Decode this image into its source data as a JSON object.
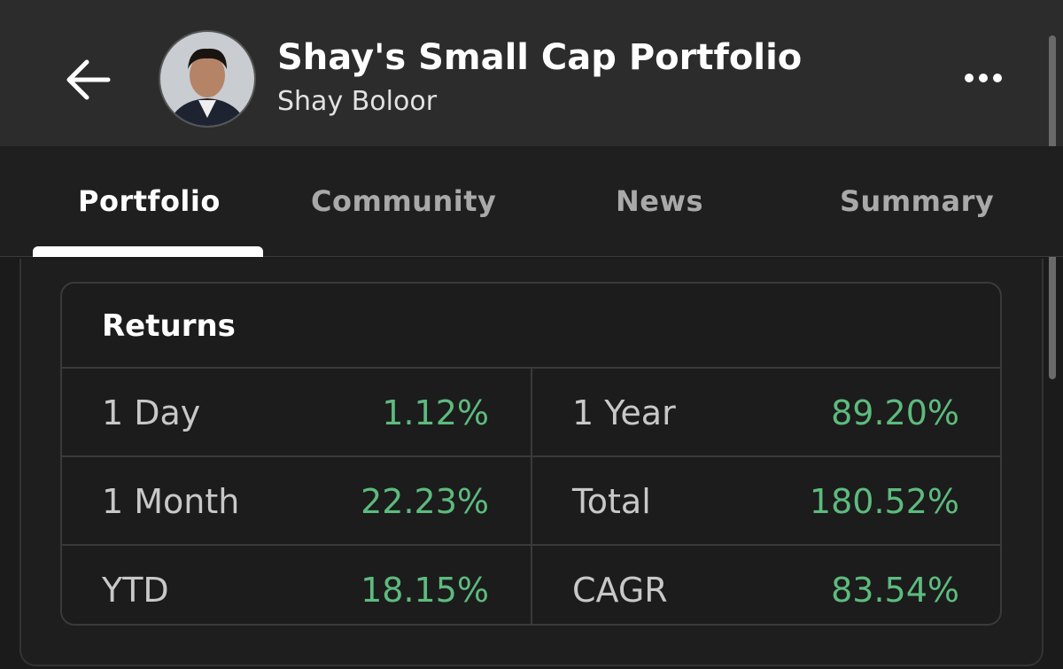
{
  "header": {
    "title": "Shay's Small Cap Portfolio",
    "subtitle": "Shay Boloor"
  },
  "tabs": [
    "Portfolio",
    "Community",
    "News",
    "Summary"
  ],
  "returns": {
    "title": "Returns",
    "rows": [
      [
        "1 Day",
        "1.12%",
        "1 Year",
        "89.20%"
      ],
      [
        "1 Month",
        "22.23%",
        "Total",
        "180.52%"
      ],
      [
        "YTD",
        "18.15%",
        "CAGR",
        "83.54%"
      ]
    ]
  }
}
